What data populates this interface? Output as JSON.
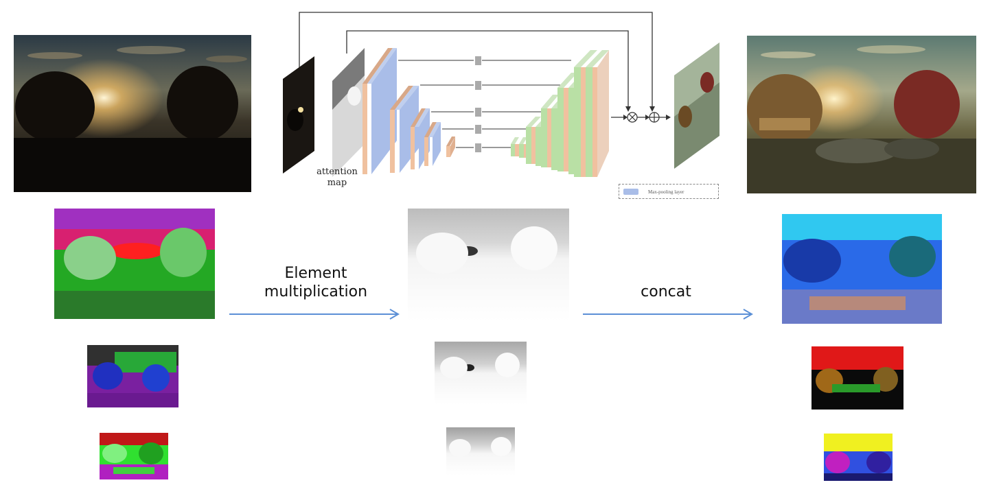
{
  "network": {
    "attention_label_line1": "attention",
    "attention_label_line2": "map",
    "legend_text": "Max-pooling layer"
  },
  "arrows": {
    "left_label_line1": "Element",
    "left_label_line2": "multiplication",
    "right_label": "concat",
    "color": "#5b8fd6"
  },
  "colors": {
    "conv_orange": "#f0c19f",
    "conv_blue": "#a9bde8",
    "conv_green": "#b9e0a5",
    "skip_line": "#333333"
  }
}
